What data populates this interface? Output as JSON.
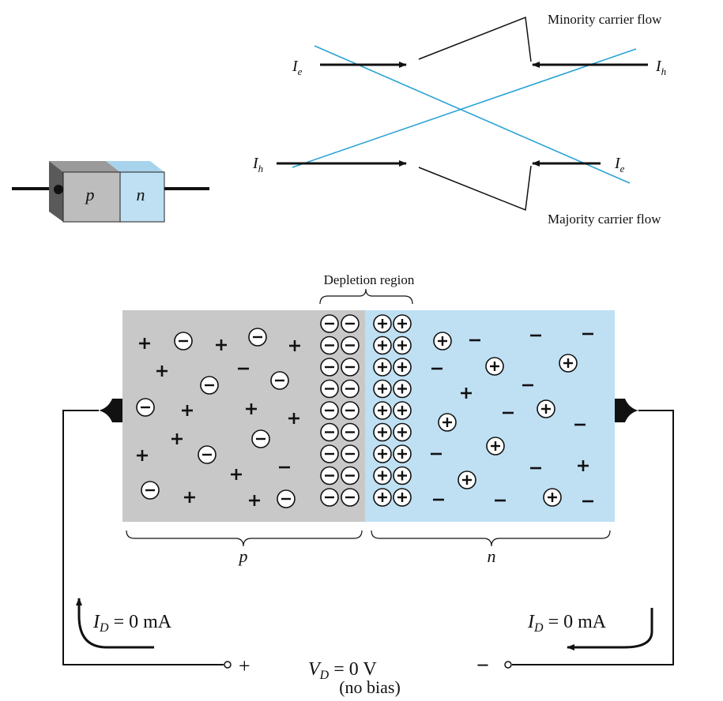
{
  "colors": {
    "p_region": "#c8c8c8",
    "n_region": "#bfe0f3",
    "block_p_face": "#bdbdbd",
    "block_p_top": "#9a9a9a",
    "block_p_side": "#5a5a5a",
    "block_n_face": "#bfe0f3",
    "block_n_top": "#a8d3ec",
    "cross_lines": "#2aa4d6",
    "ink": "#111111"
  },
  "diode_block": {
    "p_label": "p",
    "n_label": "n"
  },
  "flow": {
    "minority_label": "Minority carrier flow",
    "majority_label": "Majority carrier flow",
    "ie_top_left": {
      "main": "I",
      "sub": "e"
    },
    "ih_top_right": {
      "main": "I",
      "sub": "h"
    },
    "ih_bottom_left": {
      "main": "I",
      "sub": "h"
    },
    "ie_bottom_right": {
      "main": "I",
      "sub": "e"
    }
  },
  "junction": {
    "depletion_label": "Depletion region",
    "p_label": "p",
    "n_label": "n",
    "carrier_glyph_plus": "+",
    "carrier_glyph_minus": "−"
  },
  "circuit": {
    "id_left": {
      "main": "I",
      "sub": "D",
      "rest": " = 0 mA"
    },
    "id_right": {
      "main": "I",
      "sub": "D",
      "rest": " = 0 mA"
    },
    "vd": {
      "main": "V",
      "sub": "D",
      "rest": " = 0 V"
    },
    "no_bias": "(no bias)",
    "plus_terminal": "+",
    "minus_terminal": "−"
  }
}
